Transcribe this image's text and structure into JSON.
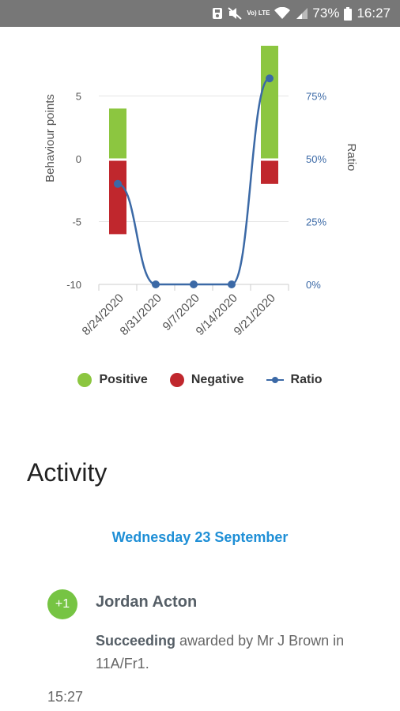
{
  "status_bar": {
    "volte": "Vo) LTE",
    "battery_percent": "73%",
    "time": "16:27"
  },
  "chart_data": {
    "type": "bar",
    "categories": [
      "8/24/2020",
      "8/31/2020",
      "9/7/2020",
      "9/14/2020",
      "9/21/2020"
    ],
    "series": [
      {
        "name": "Positive",
        "kind": "bar",
        "values": [
          4,
          0,
          0,
          0,
          9
        ],
        "color": "#8cc640"
      },
      {
        "name": "Negative",
        "kind": "bar",
        "values": [
          -6,
          0,
          0,
          0,
          -2
        ],
        "color": "#c0272d"
      },
      {
        "name": "Ratio",
        "kind": "line",
        "axis": "right",
        "values": [
          40,
          0,
          0,
          0,
          82
        ],
        "color": "#3b69a6"
      }
    ],
    "ylabel": "Behaviour points",
    "y2label": "Ratio",
    "ylim": [
      -10,
      10
    ],
    "y2lim": [
      0,
      100
    ],
    "yticks": [
      "5",
      "0",
      "-5",
      "-10"
    ],
    "y2ticks": [
      "75%",
      "50%",
      "25%",
      "0%"
    ],
    "grid": true,
    "legend_position": "bottom"
  },
  "legend": {
    "positive": "Positive",
    "negative": "Negative",
    "ratio": "Ratio"
  },
  "activity": {
    "heading": "Activity",
    "date": "Wednesday 23 September",
    "entry": {
      "points": "+1",
      "student": "Jordan Acton",
      "behaviour": "Succeeding",
      "detail": " awarded by Mr J Brown in 11A/Fr1.",
      "time": "15:27"
    }
  }
}
